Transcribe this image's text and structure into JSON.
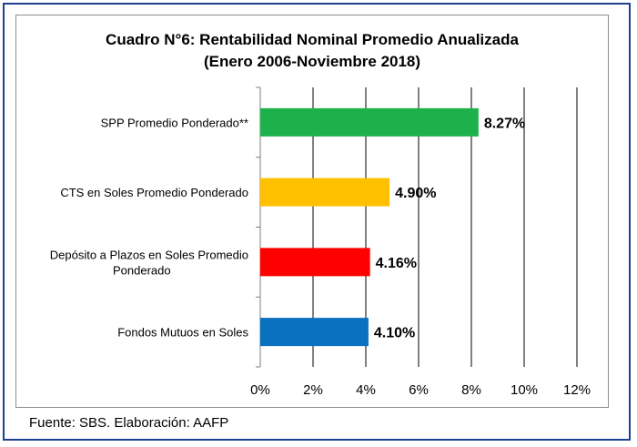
{
  "chart_data": {
    "type": "bar",
    "orientation": "horizontal",
    "title": "Cuadro N°6: Rentabilidad Nominal Promedio Anualizada",
    "subtitle": "(Enero 2006-Noviembre 2018)",
    "categories": [
      "SPP Promedio Ponderado**",
      "CTS en Soles Promedio Ponderado",
      "Depósito a Plazos en Soles Promedio Ponderado",
      "Fondos Mutuos en Soles"
    ],
    "category_label_lines": [
      [
        "SPP Promedio Ponderado**"
      ],
      [
        "CTS en Soles Promedio Ponderado"
      ],
      [
        "Depósito a Plazos en Soles Promedio",
        "Ponderado"
      ],
      [
        "Fondos Mutuos en Soles"
      ]
    ],
    "values": [
      8.27,
      4.9,
      4.16,
      4.1
    ],
    "data_labels": [
      "8.27%",
      "4.90%",
      "4.16%",
      "4.10%"
    ],
    "colors": [
      "#1db04b",
      "#ffc000",
      "#ff0000",
      "#0a70c0"
    ],
    "xlim": [
      0,
      12
    ],
    "xticks": [
      0,
      2,
      4,
      6,
      8,
      10,
      12
    ],
    "xtick_labels": [
      "0%",
      "2%",
      "4%",
      "6%",
      "8%",
      "10%",
      "12%"
    ],
    "grid": true,
    "legend": "none"
  },
  "source": "Fuente: SBS. Elaboración: AAFP"
}
